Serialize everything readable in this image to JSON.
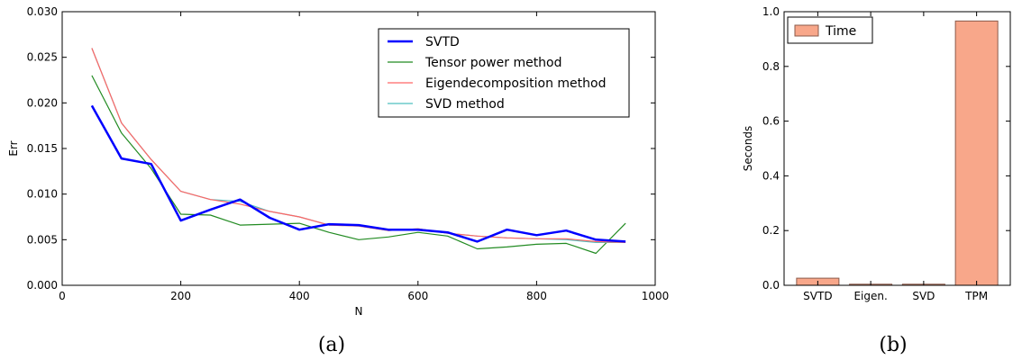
{
  "chart_data": [
    {
      "type": "line",
      "xlabel": "N",
      "ylabel": "Err",
      "xlim": [
        0,
        1000
      ],
      "ylim": [
        0,
        0.03
      ],
      "xticks": [
        "0",
        "200",
        "400",
        "600",
        "800",
        "1000"
      ],
      "yticks": [
        "0.000",
        "0.005",
        "0.010",
        "0.015",
        "0.020",
        "0.025",
        "0.030"
      ],
      "grid": false,
      "legend_position": "top-right",
      "caption": "(a)",
      "x": [
        50,
        100,
        150,
        200,
        250,
        300,
        350,
        400,
        450,
        500,
        550,
        600,
        650,
        700,
        750,
        800,
        850,
        900,
        950
      ],
      "series": [
        {
          "name": "SVTD",
          "color": "#0000ff",
          "width": "thick",
          "values": [
            0.0197,
            0.0139,
            0.0133,
            0.0071,
            0.0083,
            0.0094,
            0.0074,
            0.0061,
            0.0067,
            0.0066,
            0.0061,
            0.0061,
            0.0058,
            0.0048,
            0.0061,
            0.0055,
            0.006,
            0.005,
            0.0048
          ]
        },
        {
          "name": "Tensor power method",
          "color": "#228b22",
          "width": "thin",
          "values": [
            0.023,
            0.0167,
            0.0128,
            0.0078,
            0.0077,
            0.0066,
            0.0067,
            0.0068,
            0.0058,
            0.005,
            0.0053,
            0.0058,
            0.0054,
            0.004,
            0.0042,
            0.0045,
            0.0046,
            0.0035,
            0.0068
          ]
        },
        {
          "name": "Eigendecomposition method",
          "color": "#ff6666",
          "width": "thin",
          "values": [
            0.026,
            0.0178,
            0.0138,
            0.0103,
            0.0094,
            0.0089,
            0.0081,
            0.0075,
            0.0066,
            0.0065,
            0.006,
            0.0062,
            0.0057,
            0.0054,
            0.0052,
            0.0051,
            0.0051,
            0.0048,
            0.0047
          ]
        },
        {
          "name": "SVD method",
          "color": "#4fbfbf",
          "width": "thin",
          "values": [
            0.026,
            0.0178,
            0.0138,
            0.0103,
            0.0094,
            0.0092,
            0.0081,
            0.0075,
            0.0066,
            0.0065,
            0.006,
            0.0062,
            0.0057,
            0.0054,
            0.0052,
            0.0051,
            0.005,
            0.0047,
            0.0047
          ]
        }
      ]
    },
    {
      "type": "bar",
      "ylabel": "Seconds",
      "ylim": [
        0,
        1.0
      ],
      "yticks": [
        "0.0",
        "0.2",
        "0.4",
        "0.6",
        "0.8",
        "1.0"
      ],
      "categories": [
        "SVTD",
        "Eigen.",
        "SVD",
        "TPM"
      ],
      "grid": false,
      "legend_position": "top-left",
      "caption": "(b)",
      "series": [
        {
          "name": "Time",
          "color": "#f8a78a",
          "edge_color": "#8a5a4a",
          "values": [
            0.026,
            0.004,
            0.004,
            0.966
          ]
        }
      ]
    }
  ]
}
